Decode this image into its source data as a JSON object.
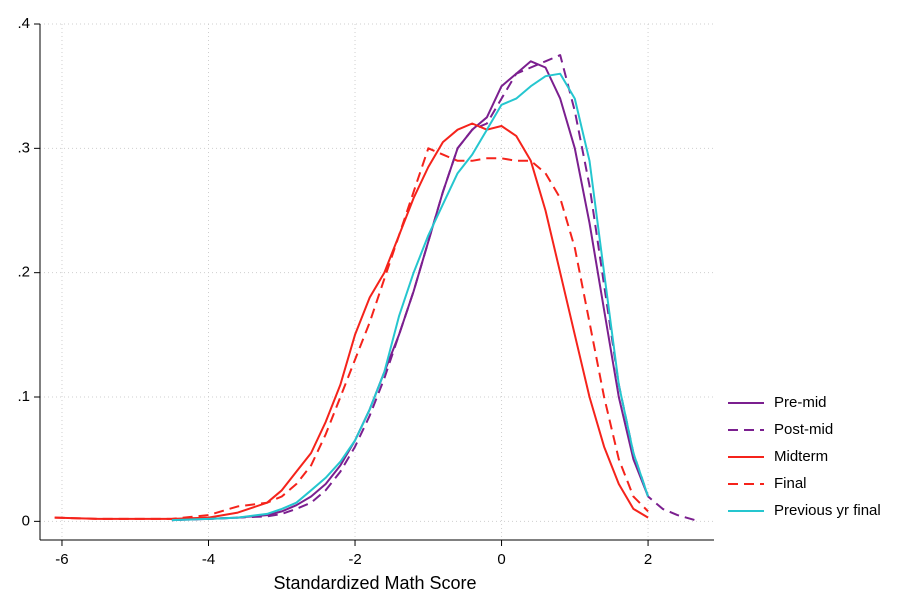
{
  "chart_data": {
    "type": "line",
    "xlabel": "Standardized Math Score",
    "x": [
      -6.1,
      -5.5,
      -5,
      -4.5,
      -4,
      -3.6,
      -3.2,
      -3,
      -2.8,
      -2.6,
      -2.4,
      -2.2,
      -2,
      -1.8,
      -1.6,
      -1.4,
      -1.2,
      -1,
      -0.8,
      -0.6,
      -0.4,
      -0.2,
      0,
      0.2,
      0.4,
      0.6,
      0.8,
      1,
      1.2,
      1.4,
      1.6,
      1.8,
      2,
      2.2,
      2.4,
      2.7
    ],
    "series": [
      {
        "name": "Pre-mid",
        "color": "#7b1f8f",
        "dashed": false,
        "values": [
          null,
          null,
          null,
          0.001,
          0.002,
          0.003,
          0.005,
          0.008,
          0.013,
          0.02,
          0.03,
          0.045,
          0.065,
          0.09,
          0.12,
          0.15,
          0.185,
          0.225,
          0.265,
          0.3,
          0.315,
          0.325,
          0.35,
          0.36,
          0.37,
          0.365,
          0.34,
          0.3,
          0.24,
          0.17,
          0.1,
          0.05,
          0.02,
          null,
          null,
          null
        ]
      },
      {
        "name": "Post-mid",
        "color": "#7b1f8f",
        "dashed": true,
        "values": [
          null,
          null,
          null,
          0.001,
          0.002,
          0.003,
          0.004,
          0.006,
          0.01,
          0.015,
          0.025,
          0.04,
          0.06,
          0.085,
          0.115,
          0.15,
          0.185,
          0.225,
          0.265,
          0.3,
          0.315,
          0.32,
          0.34,
          0.36,
          0.365,
          0.37,
          0.375,
          0.33,
          0.27,
          0.19,
          0.11,
          0.055,
          0.02,
          0.01,
          0.005,
          0
        ]
      },
      {
        "name": "Midterm",
        "color": "#f5231b",
        "dashed": false,
        "values": [
          0.003,
          0.002,
          0.002,
          0.002,
          0.003,
          0.007,
          0.015,
          0.025,
          0.04,
          0.055,
          0.08,
          0.11,
          0.15,
          0.18,
          0.2,
          0.23,
          0.26,
          0.285,
          0.305,
          0.315,
          0.32,
          0.315,
          0.318,
          0.31,
          0.29,
          0.25,
          0.2,
          0.15,
          0.1,
          0.06,
          0.03,
          0.01,
          0.003,
          null,
          null,
          null
        ]
      },
      {
        "name": "Final",
        "color": "#f5231b",
        "dashed": true,
        "values": [
          0.003,
          0.002,
          0.002,
          0.002,
          0.005,
          0.012,
          0.015,
          0.02,
          0.03,
          0.045,
          0.07,
          0.1,
          0.13,
          0.16,
          0.195,
          0.23,
          0.265,
          0.3,
          0.295,
          0.29,
          0.29,
          0.292,
          0.292,
          0.29,
          0.29,
          0.28,
          0.26,
          0.22,
          0.16,
          0.1,
          0.05,
          0.02,
          0.008,
          null,
          null,
          null
        ]
      },
      {
        "name": "Previous yr final",
        "color": "#25c6cf",
        "dashed": false,
        "values": [
          null,
          null,
          null,
          0.001,
          0.002,
          0.003,
          0.006,
          0.01,
          0.015,
          0.025,
          0.035,
          0.048,
          0.065,
          0.09,
          0.12,
          0.165,
          0.2,
          0.23,
          0.255,
          0.28,
          0.295,
          0.315,
          0.335,
          0.34,
          0.35,
          0.358,
          0.36,
          0.34,
          0.29,
          0.2,
          0.11,
          0.055,
          0.02,
          null,
          null,
          null
        ]
      }
    ],
    "xlim": [
      -6.3,
      2.9
    ],
    "xticks": [
      -6,
      -4,
      -2,
      0,
      2
    ],
    "ylim": [
      -0.015,
      0.4
    ],
    "yticks": [
      0,
      {
        "value": 0.1,
        "label": ".1"
      },
      {
        "value": 0.2,
        "label": ".2"
      },
      {
        "value": 0.3,
        "label": ".3"
      },
      {
        "value": 0.4,
        "label": ".4"
      }
    ],
    "grid": true,
    "legend": "right"
  }
}
